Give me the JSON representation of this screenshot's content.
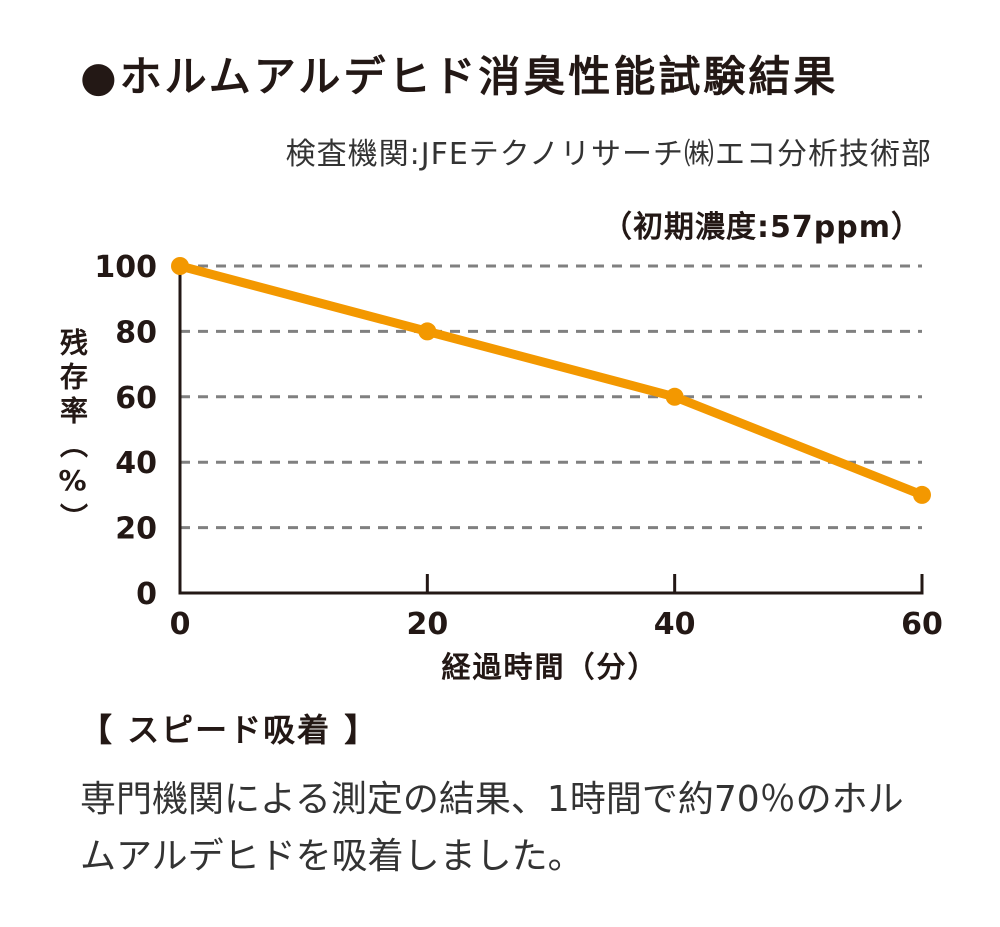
{
  "chart_data": {
    "type": "line",
    "title": "●ホルムアルデヒド消臭性能試験結果",
    "subtitle": "（初期濃度:57ppm）",
    "xlabel": "経過時間（分）",
    "ylabel": "残存率（%）",
    "x": [
      0,
      20,
      40,
      60
    ],
    "series": [
      {
        "values": [
          100,
          80,
          60,
          30
        ]
      }
    ],
    "xticks": [
      0,
      20,
      40,
      60
    ],
    "yticks": [
      0,
      20,
      40,
      60,
      80,
      100
    ],
    "xlim": [
      0,
      60
    ],
    "ylim": [
      0,
      100
    ],
    "grid": true,
    "line_color": "#F39800",
    "grid_color": "#808080",
    "axis_color": "#231815"
  },
  "source": "検査機関:JFEテクノリサーチ㈱エコ分析技術部",
  "section": {
    "heading": "【 スピード吸着 】",
    "body_lines": [
      "専門機関による測定の結果、1時間で約70％のホル",
      "ムアルデヒドを吸着しました。"
    ]
  }
}
